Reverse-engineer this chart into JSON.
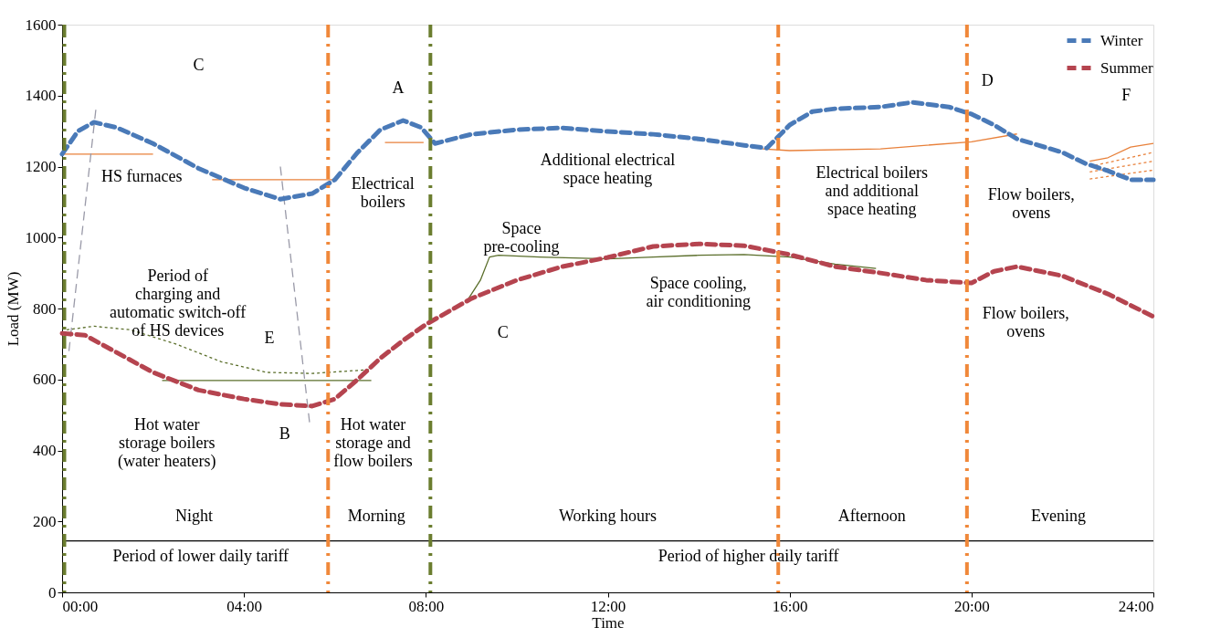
{
  "chart_data": {
    "type": "line",
    "xlabel": "Time",
    "ylabel": "Load (MW)",
    "xlim": [
      0,
      24
    ],
    "xticks": [
      {
        "value": 0,
        "label": "00:00"
      },
      {
        "value": 4,
        "label": "04:00"
      },
      {
        "value": 8,
        "label": "08:00"
      },
      {
        "value": 12,
        "label": "12:00"
      },
      {
        "value": 16,
        "label": "16:00"
      },
      {
        "value": 20,
        "label": "20:00"
      },
      {
        "value": 24,
        "label": "24:00"
      }
    ],
    "ylim": [
      0,
      1600
    ],
    "yticks": [
      0,
      200,
      400,
      600,
      800,
      1000,
      1200,
      1400,
      1600
    ],
    "grid": false,
    "legend": "top right",
    "marker": "none",
    "series": [
      {
        "name": "Winter",
        "color": "#4a7ab8",
        "line_style": "dashed",
        "x": [
          0,
          0.35,
          0.7,
          1.2,
          2,
          3,
          4,
          4.8,
          5.5,
          6,
          6.5,
          7,
          7.5,
          7.9,
          8.2,
          9,
          10,
          11,
          12,
          13,
          14,
          15,
          15.5,
          16,
          16.5,
          17,
          18,
          18.7,
          19.5,
          20,
          20.5,
          21,
          22,
          22.5,
          23,
          23.5,
          24
        ],
        "values": [
          1235,
          1300,
          1325,
          1310,
          1265,
          1195,
          1140,
          1108,
          1124,
          1163,
          1240,
          1304,
          1330,
          1310,
          1265,
          1291,
          1304,
          1309,
          1299,
          1291,
          1278,
          1260,
          1252,
          1317,
          1355,
          1363,
          1368,
          1381,
          1368,
          1348,
          1317,
          1278,
          1240,
          1209,
          1188,
          1163,
          1163
        ]
      },
      {
        "name": "Summer",
        "color": "#b5444f",
        "line_style": "dashed",
        "x": [
          0,
          0.5,
          1,
          2,
          3,
          4,
          4.8,
          5.5,
          6,
          6.5,
          7,
          7.5,
          8,
          9,
          10,
          11,
          12,
          13,
          14,
          15,
          16,
          17,
          18,
          19,
          20,
          20.5,
          21,
          22,
          23,
          24
        ],
        "values": [
          730,
          725,
          690,
          620,
          570,
          545,
          530,
          525,
          545,
          600,
          660,
          710,
          755,
          828,
          880,
          918,
          944,
          975,
          982,
          977,
          952,
          918,
          900,
          880,
          872,
          905,
          918,
          892,
          841,
          777
        ]
      },
      {
        "color": "#e8803a",
        "line_style": "solid",
        "x": [
          0,
          2
        ],
        "values": [
          1235,
          1235
        ]
      },
      {
        "color": "#e8803a",
        "line_style": "solid",
        "x": [
          3.3,
          6
        ],
        "values": [
          1163,
          1163
        ]
      },
      {
        "color": "#e8803a",
        "line_style": "solid",
        "x": [
          7.1,
          7.95
        ],
        "values": [
          1268,
          1268
        ]
      },
      {
        "color": "#e8803a",
        "line_style": "solid",
        "x": [
          15.4,
          16,
          18,
          20,
          21
        ],
        "values": [
          1250,
          1245,
          1250,
          1270,
          1292
        ]
      },
      {
        "color": "#e8803a",
        "line_style": "solid",
        "x": [
          22.6,
          23,
          23.5,
          24
        ],
        "values": [
          1215,
          1225,
          1255,
          1265
        ]
      },
      {
        "color": "#e8803a",
        "line_style": "dotted",
        "x": [
          22.6,
          24
        ],
        "values": [
          1200,
          1240
        ]
      },
      {
        "color": "#e8803a",
        "line_style": "dotted",
        "x": [
          22.6,
          24
        ],
        "values": [
          1185,
          1215
        ]
      },
      {
        "color": "#e8803a",
        "line_style": "dotted",
        "x": [
          22.6,
          24
        ],
        "values": [
          1165,
          1190
        ]
      },
      {
        "color": "#5a6e2a",
        "line_style": "solid",
        "x": [
          2.2,
          6.8
        ],
        "values": [
          597,
          597
        ]
      },
      {
        "color": "#5a6e2a",
        "line_style": "dotted",
        "x": [
          0.1,
          0.7,
          1.5,
          2.5,
          3.5,
          4.5,
          5.5,
          6.8
        ],
        "values": [
          740,
          750,
          740,
          700,
          650,
          620,
          617,
          628
        ]
      },
      {
        "color": "#5a6e2a",
        "line_style": "solid",
        "x": [
          8.9,
          9.2,
          9.4,
          9.6,
          10.5,
          12,
          13,
          14,
          15,
          16,
          17,
          17.9
        ],
        "values": [
          820,
          880,
          945,
          950,
          945,
          940,
          945,
          950,
          952,
          945,
          925,
          913
        ]
      },
      {
        "color": "#9a9aa8",
        "line_style": "dashed",
        "x": [
          0.15,
          0.75
        ],
        "values": [
          680,
          1370
        ]
      },
      {
        "color": "#9a9aa8",
        "line_style": "dashed",
        "x": [
          4.8,
          5.45
        ],
        "values": [
          1200,
          470
        ]
      },
      {
        "color": "#000000",
        "line_style": "solid",
        "x": [
          0.05,
          8.1,
          24
        ],
        "values": [
          145,
          145,
          145
        ]
      }
    ],
    "ref_lines": [
      {
        "axis": "x",
        "value": 0.05,
        "color": "#6b7d2f",
        "line_style": "dashed"
      },
      {
        "axis": "x",
        "value": 8.1,
        "color": "#6b7d2f",
        "line_style": "dashed"
      },
      {
        "axis": "x",
        "value": 5.85,
        "color": "#f0883a",
        "line_style": "dashed"
      },
      {
        "axis": "x",
        "value": 15.75,
        "color": "#f0883a",
        "line_style": "dashed"
      },
      {
        "axis": "x",
        "value": 19.9,
        "color": "#f0883a",
        "line_style": "dashed"
      }
    ],
    "annotations": [
      "C",
      "A",
      "HS furnaces",
      "Electrical\nboilers",
      "Additional electrical\nspace heating",
      "Electrical boilers\nand additional\nspace heating",
      "D",
      "F",
      "Flow boilers,\novens",
      "Period of\ncharging and\nautomatic switch-off\nof HS devices",
      "Space\npre-cooling",
      "E",
      "Space cooling,\nair conditioning",
      "C",
      "Hot water\nstorage boilers\n(water heaters)",
      "B",
      "Hot water\nstorage and\nflow boilers",
      "Flow boilers,\novens",
      "Night",
      "Morning",
      "Working hours",
      "Afternoon",
      "Evening",
      "Period of lower daily tariff",
      "Period of higher daily tariff"
    ]
  }
}
